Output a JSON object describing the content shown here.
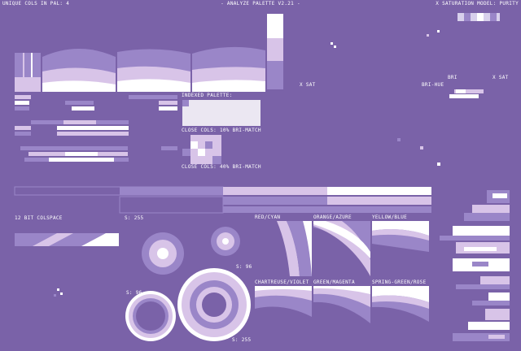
{
  "header": {
    "left": "UNIQUE COLS IN PAL: 4",
    "title": "- ANALYZE PALETTE V2.21 -",
    "right": "X SATURATION MODEL: PURITY"
  },
  "labels": {
    "sat_a": "X SAT",
    "bri": "BRI",
    "sat_b": "X SAT",
    "bri_hue": "BRI-HUE",
    "indexed": "INDEXED PALETTE:",
    "close10": "CLOSE COLS: 10% BRI-MATCH",
    "close40": "CLOSE COLS: 40% BRI-MATCH",
    "colspace": "12 BIT COLSPACE"
  },
  "wheels": {
    "s1": "S: 255",
    "s2": "S: 96",
    "s3": "S: 96",
    "s4": "S: 255"
  },
  "pairs": [
    "RED/CYAN",
    "ORANGE/AZURE",
    "YELLOW/BLUE",
    "CHARTREUSE/VIOLET",
    "GREEN/MAGENTA",
    "SPRING-GREEN/ROSE"
  ]
}
